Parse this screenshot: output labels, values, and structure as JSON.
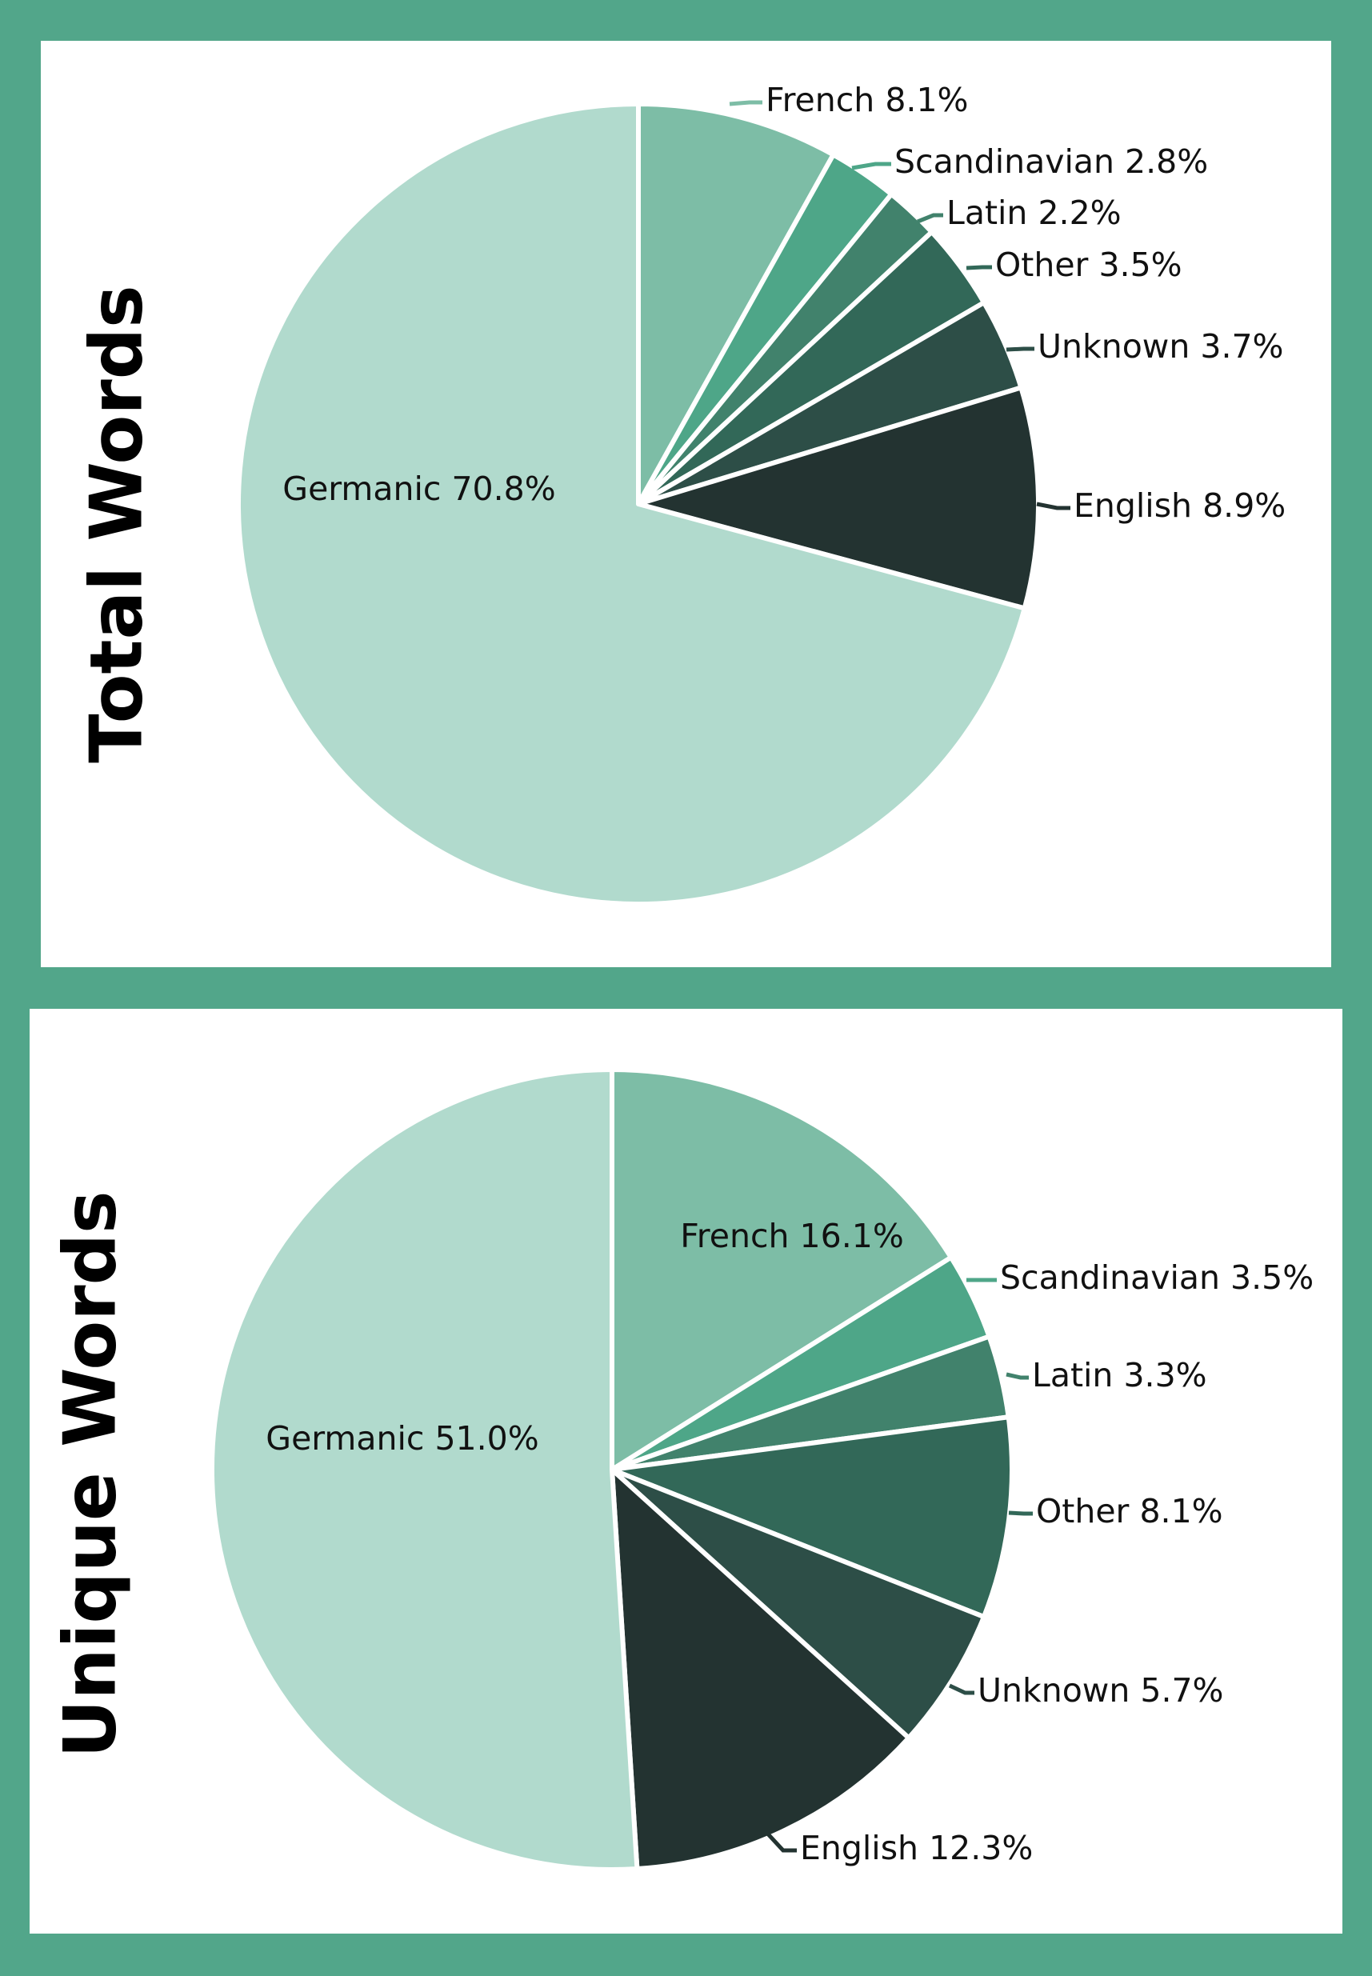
{
  "chart_data": [
    {
      "type": "pie",
      "title": "Total Words",
      "start_angle_deg": 0,
      "direction": "clockwise",
      "slices": [
        {
          "label": "French",
          "value": 8.1,
          "display": "French 8.1%",
          "color": "#7dbda6",
          "label_style": "leader"
        },
        {
          "label": "Scandinavian",
          "value": 2.8,
          "display": "Scandinavian 2.8%",
          "color": "#4ea688",
          "label_style": "leader"
        },
        {
          "label": "Latin",
          "value": 2.2,
          "display": "Latin 2.2%",
          "color": "#41826c",
          "label_style": "leader"
        },
        {
          "label": "Other",
          "value": 3.5,
          "display": "Other 3.5%",
          "color": "#326858",
          "label_style": "leader"
        },
        {
          "label": "Unknown",
          "value": 3.7,
          "display": "Unknown 3.7%",
          "color": "#2d4e47",
          "label_style": "leader"
        },
        {
          "label": "English",
          "value": 8.9,
          "display": "English 8.9%",
          "color": "#233331",
          "label_style": "leader"
        },
        {
          "label": "Germanic",
          "value": 70.8,
          "display": "Germanic 70.8%",
          "color": "#b1dacd",
          "label_style": "inside"
        }
      ]
    },
    {
      "type": "pie",
      "title": "Unique Words",
      "start_angle_deg": 0,
      "direction": "clockwise",
      "slices": [
        {
          "label": "French",
          "value": 16.1,
          "display": "French 16.1%",
          "color": "#7dbda6",
          "label_style": "inside"
        },
        {
          "label": "Scandinavian",
          "value": 3.5,
          "display": "Scandinavian 3.5%",
          "color": "#4ea688",
          "label_style": "leader"
        },
        {
          "label": "Latin",
          "value": 3.3,
          "display": "Latin 3.3%",
          "color": "#41826c",
          "label_style": "leader"
        },
        {
          "label": "Other",
          "value": 8.1,
          "display": "Other 8.1%",
          "color": "#326858",
          "label_style": "leader"
        },
        {
          "label": "Unknown",
          "value": 5.7,
          "display": "Unknown 5.7%",
          "color": "#2d4e47",
          "label_style": "leader"
        },
        {
          "label": "English",
          "value": 12.3,
          "display": "English 12.3%",
          "color": "#233331",
          "label_style": "leader"
        },
        {
          "label": "Germanic",
          "value": 51.0,
          "display": "Germanic 51.0%",
          "color": "#b1dacd",
          "label_style": "inside"
        }
      ]
    }
  ],
  "colors": {
    "background": "#52a68a",
    "panel": "#ffffff",
    "slice_border": "#ffffff"
  }
}
